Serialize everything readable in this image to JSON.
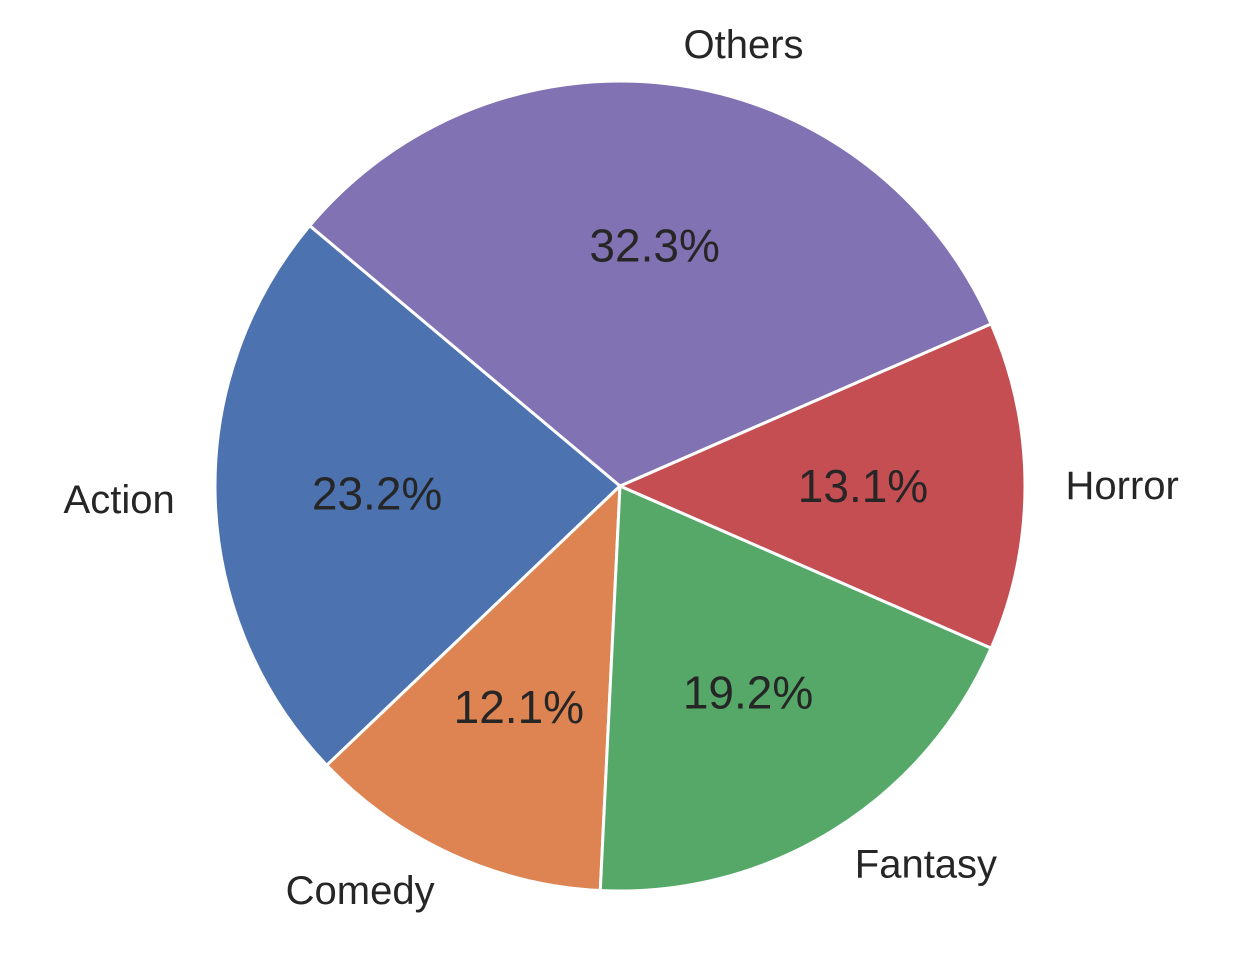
{
  "chart_data": {
    "type": "pie",
    "title": "",
    "start_angle_deg": 140,
    "direction": "counterclockwise",
    "slices": [
      {
        "label": "Action",
        "value": 23.2,
        "pct_label": "23.2%",
        "color": "#4c72b0"
      },
      {
        "label": "Comedy",
        "value": 12.1,
        "pct_label": "12.1%",
        "color": "#dd8452"
      },
      {
        "label": "Fantasy",
        "value": 19.2,
        "pct_label": "19.2%",
        "color": "#55a868"
      },
      {
        "label": "Horror",
        "value": 13.1,
        "pct_label": "13.1%",
        "color": "#c44e52"
      },
      {
        "label": "Others",
        "value": 32.3,
        "pct_label": "32.3%",
        "color": "#8172b3"
      }
    ]
  }
}
